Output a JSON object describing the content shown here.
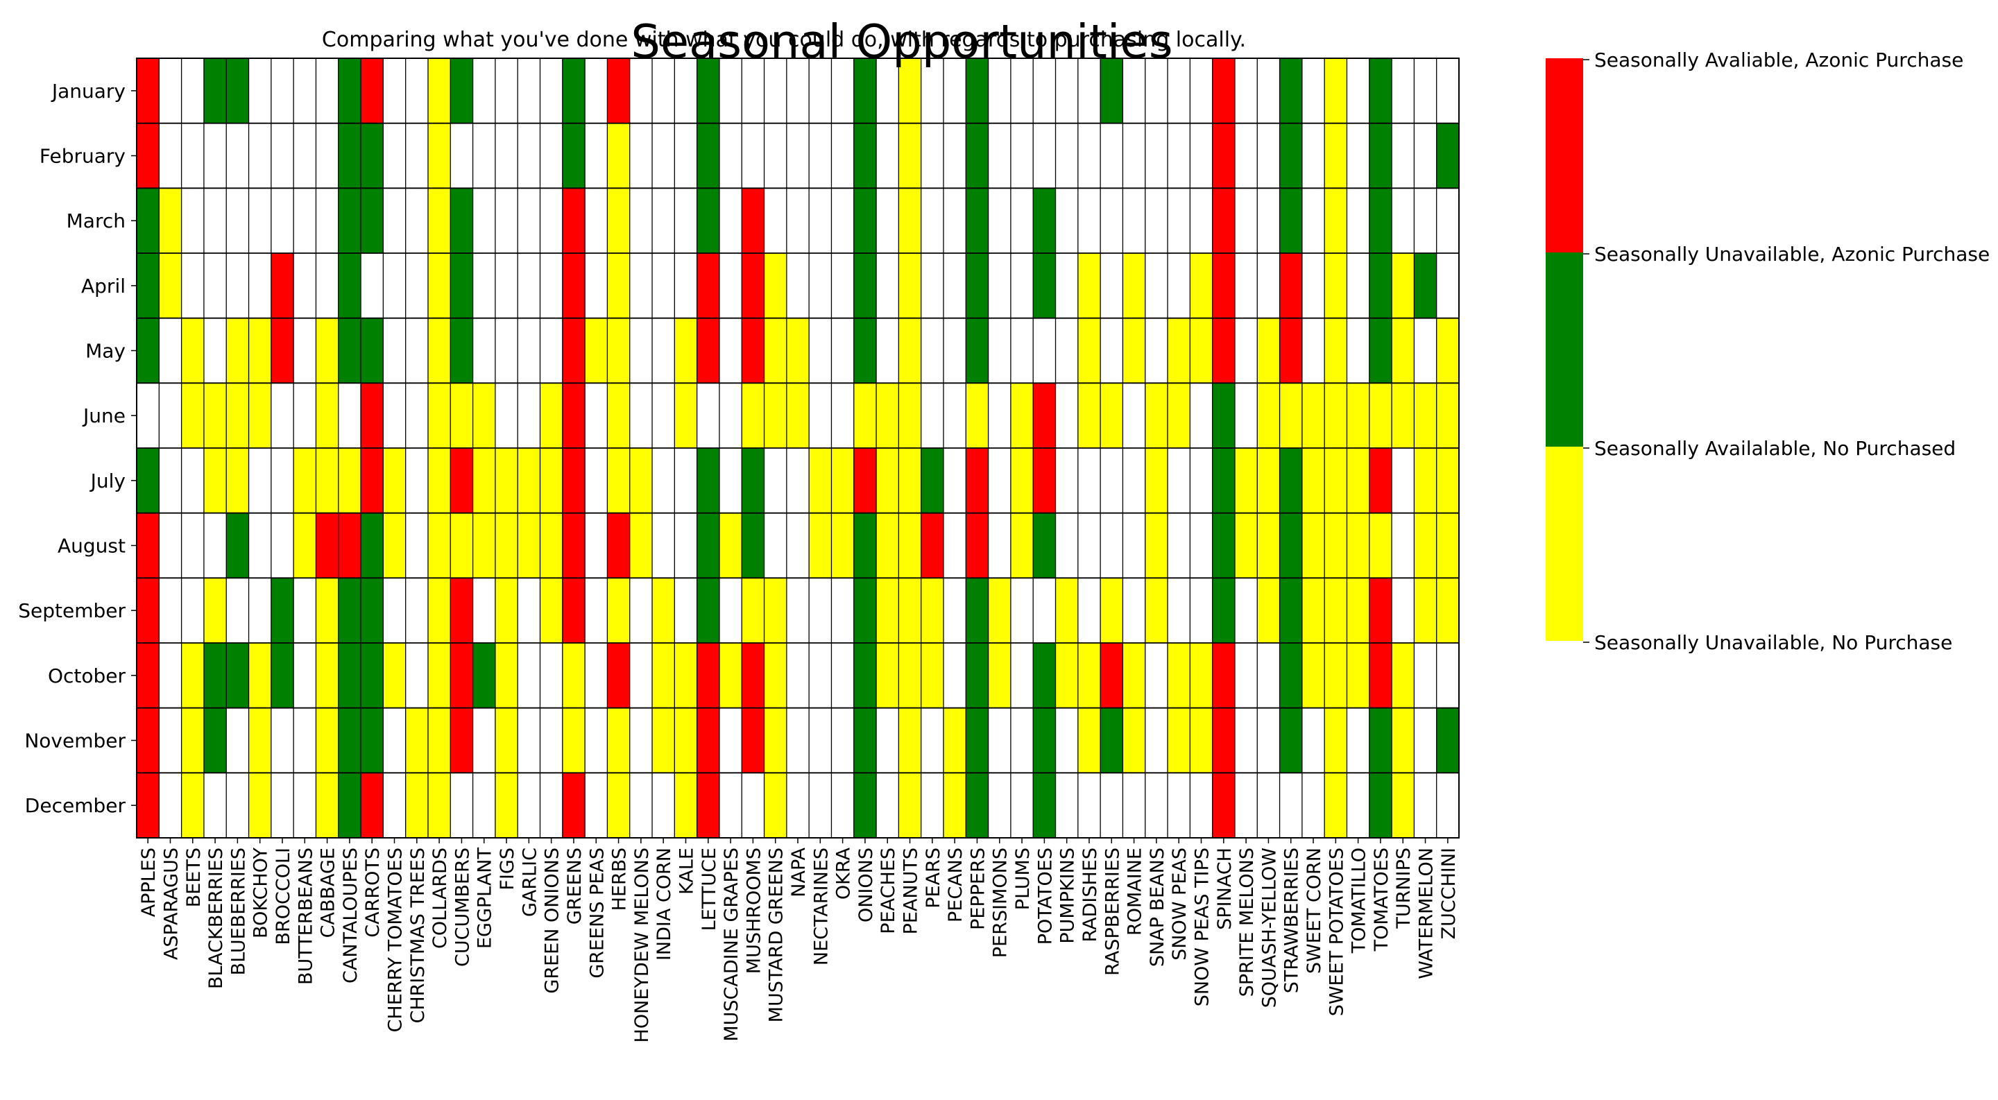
{
  "chart_data": {
    "type": "heatmap",
    "title": "Seasonal Opportunities",
    "subtitle": "Comparing what you've done with what you could do, with regards to purchasing locally.",
    "xlabel": "",
    "ylabel": "",
    "grid": true,
    "legend_position": "right",
    "months": [
      "January",
      "February",
      "March",
      "April",
      "May",
      "June",
      "July",
      "August",
      "September",
      "October",
      "November",
      "December"
    ],
    "crops": [
      "APPLES",
      "ASPARAGUS",
      "BEETS",
      "BLACKBERRIES",
      "BLUEBERRIES",
      "BOKCHOY",
      "BROCCOLI",
      "BUTTERBEANS",
      "CABBAGE",
      "CANTALOUPES",
      "CARROTS",
      "CHERRY TOMATOES",
      "CHRISTMAS TREES",
      "COLLARDS",
      "CUCUMBERS",
      "EGGPLANT",
      "FIGS",
      "GARLIC",
      "GREEN ONIONS",
      "GREENS",
      "GREENS PEAS",
      "HERBS",
      "HONEYDEW MELONS",
      "INDIA CORN",
      "KALE",
      "LETTUCE",
      "MUSCADINE GRAPES",
      "MUSHROOMS",
      "MUSTARD GREENS",
      "NAPA",
      "NECTARINES",
      "OKRA",
      "ONIONS",
      "PEACHES",
      "PEANUTS",
      "PEARS",
      "PECANS",
      "PEPPERS",
      "PERSIMONS",
      "PLUMS",
      "POTATOES",
      "PUMPKINS",
      "RADISHES",
      "RASPBERRIES",
      "ROMAINE",
      "SNAP BEANS",
      "SNOW PEAS",
      "SNOW PEAS TIPS",
      "SPINACH",
      "SPRITE MELONS",
      "SQUASH-YELLOW",
      "STRAWBERRIES",
      "SWEET CORN",
      "SWEET POTATOES",
      "TOMATILLO",
      "TOMATOES",
      "TURNIPS",
      "WATERMELON",
      "ZUCCHINI"
    ],
    "categories": [
      {
        "code": 0,
        "label": "Seasonally Unavailable, No Purchase",
        "color": "#ffffff"
      },
      {
        "code": 1,
        "label": "Seasonally Availalable, No Purchased",
        "color": "#ffff00"
      },
      {
        "code": 2,
        "label": "Seasonally Unavailable, Azonic Purchase",
        "color": "#008000"
      },
      {
        "code": 3,
        "label": "Seasonally Avaliable, Azonic Purchase",
        "color": "#ff0000"
      }
    ],
    "legend_order_top_to_bottom": [
      3,
      2,
      1,
      0
    ],
    "values": [
      [
        3,
        0,
        0,
        2,
        2,
        0,
        0,
        0,
        0,
        2,
        3,
        0,
        0,
        1,
        2,
        0,
        0,
        0,
        0,
        2,
        0,
        3,
        0,
        0,
        0,
        2,
        0,
        0,
        0,
        0,
        0,
        0,
        2,
        0,
        1,
        0,
        0,
        2,
        0,
        0,
        0,
        0,
        0,
        2,
        0,
        0,
        0,
        0,
        3,
        0,
        0,
        2,
        0,
        1,
        0,
        2,
        0,
        0,
        0
      ],
      [
        3,
        0,
        0,
        0,
        0,
        0,
        0,
        0,
        0,
        2,
        2,
        0,
        0,
        1,
        0,
        0,
        0,
        0,
        0,
        2,
        0,
        1,
        0,
        0,
        0,
        2,
        0,
        0,
        0,
        0,
        0,
        0,
        2,
        0,
        1,
        0,
        0,
        2,
        0,
        0,
        0,
        0,
        0,
        0,
        0,
        0,
        0,
        0,
        3,
        0,
        0,
        2,
        0,
        1,
        0,
        2,
        0,
        0,
        2
      ],
      [
        2,
        1,
        0,
        0,
        0,
        0,
        0,
        0,
        0,
        2,
        2,
        0,
        0,
        1,
        2,
        0,
        0,
        0,
        0,
        3,
        0,
        1,
        0,
        0,
        0,
        2,
        0,
        3,
        0,
        0,
        0,
        0,
        2,
        0,
        1,
        0,
        0,
        2,
        0,
        0,
        2,
        0,
        0,
        0,
        0,
        0,
        0,
        0,
        3,
        0,
        0,
        2,
        0,
        1,
        0,
        2,
        0,
        0,
        0
      ],
      [
        2,
        1,
        0,
        0,
        0,
        0,
        3,
        0,
        0,
        2,
        0,
        0,
        0,
        1,
        2,
        0,
        0,
        0,
        0,
        3,
        0,
        1,
        0,
        0,
        0,
        3,
        0,
        3,
        1,
        0,
        0,
        0,
        2,
        0,
        1,
        0,
        0,
        2,
        0,
        0,
        2,
        0,
        1,
        0,
        1,
        0,
        0,
        1,
        3,
        0,
        0,
        3,
        0,
        1,
        0,
        2,
        1,
        2,
        0
      ],
      [
        2,
        0,
        1,
        0,
        1,
        1,
        3,
        0,
        1,
        2,
        2,
        0,
        0,
        1,
        2,
        0,
        0,
        0,
        0,
        3,
        1,
        1,
        0,
        0,
        1,
        3,
        0,
        3,
        1,
        1,
        0,
        0,
        2,
        0,
        1,
        0,
        0,
        2,
        0,
        0,
        0,
        0,
        1,
        0,
        1,
        0,
        1,
        1,
        3,
        0,
        1,
        3,
        0,
        1,
        0,
        2,
        1,
        0,
        1
      ],
      [
        0,
        0,
        1,
        1,
        1,
        1,
        0,
        0,
        1,
        0,
        3,
        0,
        0,
        1,
        1,
        1,
        0,
        0,
        1,
        3,
        0,
        1,
        0,
        0,
        1,
        0,
        0,
        1,
        1,
        1,
        0,
        0,
        1,
        1,
        1,
        0,
        0,
        1,
        0,
        1,
        3,
        0,
        1,
        1,
        0,
        1,
        1,
        0,
        2,
        0,
        1,
        1,
        1,
        1,
        1,
        1,
        1,
        1,
        1
      ],
      [
        2,
        0,
        0,
        1,
        1,
        0,
        0,
        1,
        1,
        1,
        3,
        1,
        0,
        1,
        3,
        1,
        1,
        1,
        1,
        3,
        0,
        1,
        1,
        0,
        0,
        2,
        0,
        2,
        0,
        0,
        1,
        1,
        3,
        1,
        1,
        2,
        0,
        3,
        0,
        1,
        3,
        0,
        0,
        0,
        0,
        1,
        0,
        0,
        2,
        1,
        1,
        2,
        1,
        1,
        1,
        3,
        0,
        1,
        1
      ],
      [
        3,
        0,
        0,
        0,
        2,
        0,
        0,
        1,
        3,
        3,
        2,
        1,
        0,
        1,
        1,
        1,
        1,
        1,
        1,
        3,
        0,
        3,
        1,
        0,
        0,
        2,
        1,
        2,
        0,
        0,
        1,
        1,
        2,
        1,
        1,
        3,
        0,
        3,
        0,
        1,
        2,
        0,
        0,
        0,
        0,
        1,
        0,
        0,
        2,
        1,
        1,
        2,
        1,
        1,
        1,
        1,
        0,
        1,
        1
      ],
      [
        3,
        0,
        0,
        1,
        0,
        0,
        2,
        0,
        1,
        2,
        2,
        0,
        0,
        1,
        3,
        0,
        1,
        0,
        1,
        3,
        0,
        1,
        0,
        1,
        0,
        2,
        0,
        1,
        1,
        0,
        0,
        0,
        2,
        1,
        1,
        1,
        0,
        2,
        1,
        0,
        0,
        1,
        0,
        1,
        0,
        1,
        0,
        0,
        2,
        0,
        1,
        2,
        1,
        1,
        1,
        3,
        0,
        1,
        1
      ],
      [
        3,
        0,
        1,
        2,
        2,
        1,
        2,
        0,
        1,
        2,
        2,
        1,
        0,
        1,
        3,
        2,
        1,
        0,
        0,
        1,
        0,
        3,
        0,
        1,
        1,
        3,
        1,
        3,
        1,
        0,
        0,
        0,
        2,
        1,
        1,
        1,
        0,
        2,
        1,
        0,
        2,
        1,
        1,
        3,
        1,
        0,
        1,
        1,
        3,
        0,
        0,
        2,
        1,
        1,
        1,
        3,
        1,
        0,
        0
      ],
      [
        3,
        0,
        1,
        2,
        0,
        1,
        0,
        0,
        1,
        2,
        2,
        0,
        1,
        1,
        3,
        0,
        1,
        0,
        0,
        1,
        0,
        1,
        0,
        1,
        1,
        3,
        0,
        3,
        1,
        0,
        0,
        0,
        2,
        0,
        1,
        0,
        1,
        2,
        0,
        0,
        2,
        0,
        1,
        2,
        1,
        0,
        1,
        1,
        3,
        0,
        0,
        2,
        0,
        1,
        0,
        2,
        1,
        0,
        2
      ],
      [
        3,
        0,
        1,
        0,
        0,
        1,
        0,
        0,
        1,
        2,
        3,
        0,
        1,
        1,
        0,
        0,
        1,
        0,
        0,
        3,
        0,
        1,
        0,
        0,
        1,
        3,
        0,
        0,
        1,
        0,
        0,
        0,
        2,
        0,
        1,
        0,
        1,
        2,
        0,
        0,
        2,
        0,
        0,
        0,
        0,
        0,
        0,
        0,
        3,
        0,
        0,
        0,
        0,
        1,
        0,
        2,
        1,
        0,
        0
      ]
    ]
  }
}
